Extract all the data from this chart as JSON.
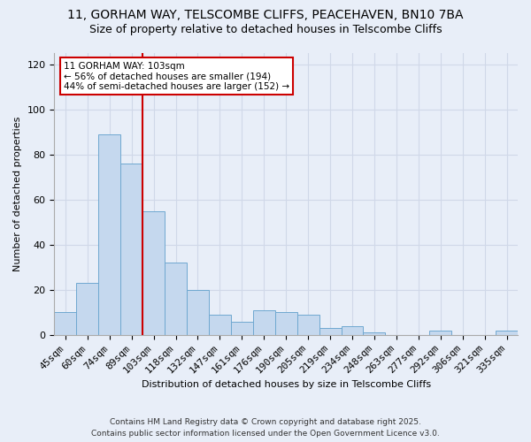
{
  "title_line1": "11, GORHAM WAY, TELSCOMBE CLIFFS, PEACEHAVEN, BN10 7BA",
  "title_line2": "Size of property relative to detached houses in Telscombe Cliffs",
  "bar_labels": [
    "45sqm",
    "60sqm",
    "74sqm",
    "89sqm",
    "103sqm",
    "118sqm",
    "132sqm",
    "147sqm",
    "161sqm",
    "176sqm",
    "190sqm",
    "205sqm",
    "219sqm",
    "234sqm",
    "248sqm",
    "263sqm",
    "277sqm",
    "292sqm",
    "306sqm",
    "321sqm",
    "335sqm"
  ],
  "bar_values": [
    10,
    23,
    89,
    76,
    55,
    32,
    20,
    9,
    6,
    11,
    10,
    9,
    3,
    4,
    1,
    0,
    0,
    2,
    0,
    0,
    2
  ],
  "bar_color": "#c5d8ee",
  "bar_edgecolor": "#6fa8d0",
  "vline_index": 3.5,
  "vline_color": "#cc0000",
  "xlabel": "Distribution of detached houses by size in Telscombe Cliffs",
  "ylabel": "Number of detached properties",
  "ylim": [
    0,
    125
  ],
  "yticks": [
    0,
    20,
    40,
    60,
    80,
    100,
    120
  ],
  "annotation_title": "11 GORHAM WAY: 103sqm",
  "annotation_line1": "← 56% of detached houses are smaller (194)",
  "annotation_line2": "44% of semi-detached houses are larger (152) →",
  "annotation_box_facecolor": "#ffffff",
  "annotation_box_edgecolor": "#cc0000",
  "footer_line1": "Contains HM Land Registry data © Crown copyright and database right 2025.",
  "footer_line2": "Contains public sector information licensed under the Open Government Licence v3.0.",
  "background_color": "#e8eef8",
  "grid_color": "#d0d8e8",
  "title_fontsize": 10,
  "subtitle_fontsize": 9,
  "axis_fontsize": 8,
  "xlabel_fontsize": 8,
  "ylabel_fontsize": 8,
  "footer_fontsize": 6.5
}
